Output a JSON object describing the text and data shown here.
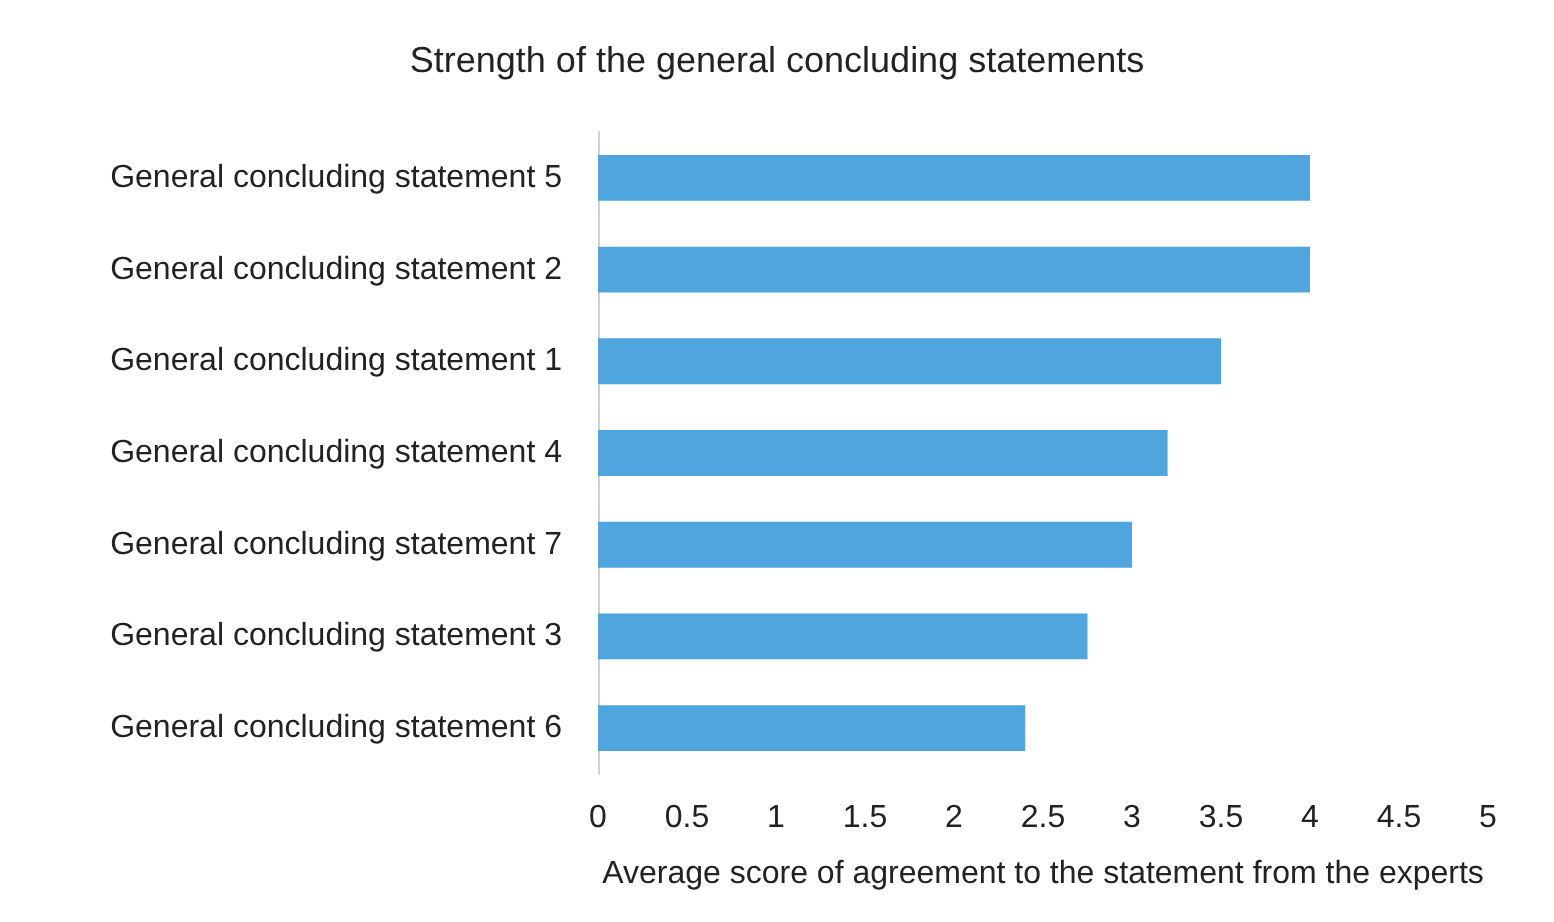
{
  "chart_data": {
    "type": "bar",
    "orientation": "horizontal",
    "title": "Strength of the general concluding statements",
    "xlabel": "Average score of agreement to the statement from the experts",
    "categories": [
      "General concluding statement 5",
      "General concluding statement 2",
      "General concluding statement 1",
      "General concluding statement 4",
      "General concluding statement 7",
      "General concluding statement 3",
      "General concluding statement 6"
    ],
    "values": [
      4,
      4,
      3.5,
      3.2,
      3,
      2.75,
      2.4
    ],
    "color": "#4fa5de",
    "xlim": [
      0,
      5
    ],
    "xticks": [
      0,
      0.5,
      1,
      1.5,
      2,
      2.5,
      3,
      3.5,
      4,
      4.5,
      5
    ],
    "grid": false
  }
}
